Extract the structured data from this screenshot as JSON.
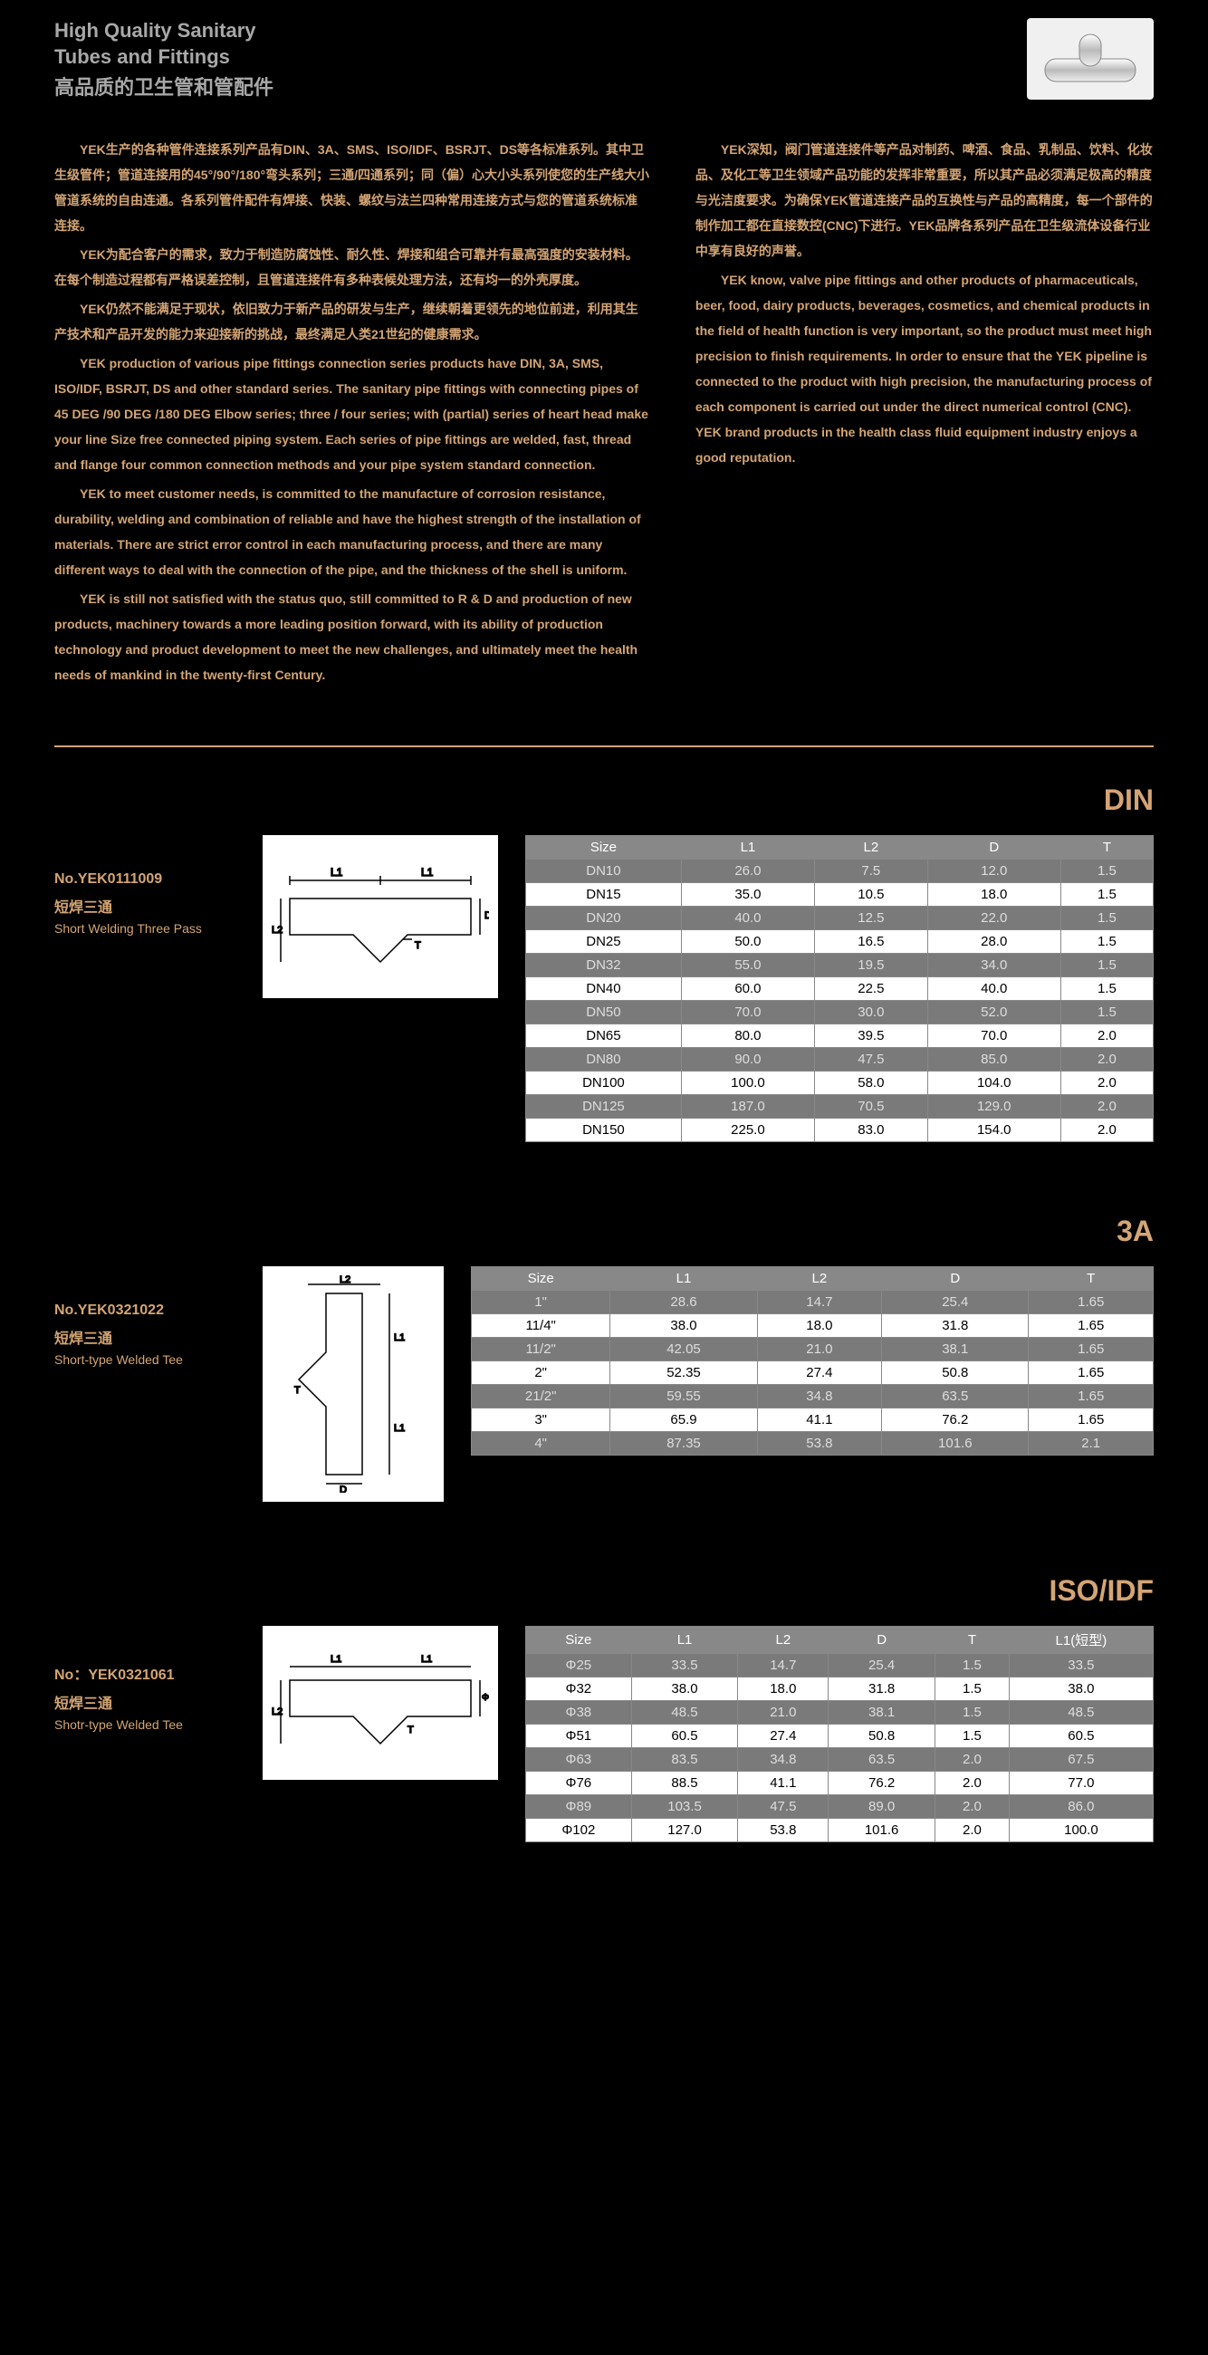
{
  "header": {
    "title_en_1": "High Quality Sanitary",
    "title_en_2": "Tubes and Fittings",
    "title_cn": "高品质的卫生管和管配件"
  },
  "intro_left": [
    "YEK生产的各种管件连接系列产品有DIN、3A、SMS、ISO/IDF、BSRJT、DS等各标准系列。其中卫生级管件；管道连接用的45°/90°/180°弯头系列；三通/四通系列；同（偏）心大小头系列使您的生产线大小管道系统的自由连通。各系列管件配件有焊接、快装、螺纹与法兰四种常用连接方式与您的管道系统标准连接。",
    "YEK为配合客户的需求，致力于制造防腐蚀性、耐久性、焊接和组合可靠并有最高强度的安装材料。在每个制造过程都有严格误差控制，且管道连接件有多种表候处理方法，还有均一的外壳厚度。",
    "YEK仍然不能满足于现状，依旧致力于新产品的研发与生产，继续朝着更领先的地位前进，利用其生产技术和产品开发的能力来迎接新的挑战，最终满足人类21世纪的健康需求。",
    "YEK production of various pipe fittings connection series products have DIN, 3A, SMS, ISO/IDF, BSRJT, DS and other standard series. The sanitary pipe fittings with connecting pipes of 45 DEG /90 DEG /180 DEG Elbow series; three / four series; with (partial) series of heart head make your line Size free connected piping system. Each series of pipe fittings are welded, fast, thread and flange four common connection methods and your pipe system standard connection.",
    "YEK to meet customer needs, is committed to the manufacture of corrosion resistance, durability, welding and combination of reliable and have the highest strength of the installation of materials. There are strict error control in each manufacturing process, and there are many different ways to deal with the connection of the pipe, and the thickness of the shell is uniform.",
    "YEK is still not satisfied with the status quo, still committed to R & D and production of new products, machinery towards a more leading position forward, with its ability of production technology and product development to meet the new challenges, and ultimately meet the health needs of mankind in the twenty-first Century."
  ],
  "intro_right": [
    "YEK深知，阀门管道连接件等产品对制药、啤酒、食品、乳制品、饮料、化妆品、及化工等卫生领域产品功能的发挥非常重要，所以其产品必须满足极高的精度与光洁度要求。为确保YEK管道连接产品的互换性与产品的高精度，每一个部件的制作加工都在直接数控(CNC)下进行。YEK品牌各系列产品在卫生级流体设备行业中享有良好的声誉。",
    "YEK know, valve pipe fittings and other products of pharmaceuticals, beer, food, dairy products, beverages, cosmetics, and chemical products in the field of health function is very important, so the product must meet high precision to finish requirements. In order to ensure that the YEK pipeline is connected to the product with high precision, the manufacturing process of each component is carried out under the direct numerical control (CNC). YEK brand products in the health class fluid equipment industry enjoys a good reputation."
  ],
  "tables": {
    "din": {
      "standard": "DIN",
      "product_no": "No.YEK0111009",
      "name_cn": "短焊三通",
      "name_en": "Short Welding Three Pass",
      "columns": [
        "Size",
        "L1",
        "L2",
        "D",
        "T"
      ],
      "rows": [
        [
          "DN10",
          "26.0",
          "7.5",
          "12.0",
          "1.5"
        ],
        [
          "DN15",
          "35.0",
          "10.5",
          "18.0",
          "1.5"
        ],
        [
          "DN20",
          "40.0",
          "12.5",
          "22.0",
          "1.5"
        ],
        [
          "DN25",
          "50.0",
          "16.5",
          "28.0",
          "1.5"
        ],
        [
          "DN32",
          "55.0",
          "19.5",
          "34.0",
          "1.5"
        ],
        [
          "DN40",
          "60.0",
          "22.5",
          "40.0",
          "1.5"
        ],
        [
          "DN50",
          "70.0",
          "30.0",
          "52.0",
          "1.5"
        ],
        [
          "DN65",
          "80.0",
          "39.5",
          "70.0",
          "2.0"
        ],
        [
          "DN80",
          "90.0",
          "47.5",
          "85.0",
          "2.0"
        ],
        [
          "DN100",
          "100.0",
          "58.0",
          "104.0",
          "2.0"
        ],
        [
          "DN125",
          "187.0",
          "70.5",
          "129.0",
          "2.0"
        ],
        [
          "DN150",
          "225.0",
          "83.0",
          "154.0",
          "2.0"
        ]
      ]
    },
    "a3": {
      "standard": "3A",
      "product_no": "No.YEK0321022",
      "name_cn": "短焊三通",
      "name_en": "Short-type Welded Tee",
      "columns": [
        "Size",
        "L1",
        "L2",
        "D",
        "T"
      ],
      "rows": [
        [
          "1\"",
          "28.6",
          "14.7",
          "25.4",
          "1.65"
        ],
        [
          "11/4\"",
          "38.0",
          "18.0",
          "31.8",
          "1.65"
        ],
        [
          "11/2\"",
          "42.05",
          "21.0",
          "38.1",
          "1.65"
        ],
        [
          "2\"",
          "52.35",
          "27.4",
          "50.8",
          "1.65"
        ],
        [
          "21/2\"",
          "59.55",
          "34.8",
          "63.5",
          "1.65"
        ],
        [
          "3\"",
          "65.9",
          "41.1",
          "76.2",
          "1.65"
        ],
        [
          "4\"",
          "87.35",
          "53.8",
          "101.6",
          "2.1"
        ]
      ]
    },
    "iso": {
      "standard": "ISO/IDF",
      "product_no": "No：YEK0321061",
      "name_cn": "短焊三通",
      "name_en": "Shotr-type Welded Tee",
      "columns": [
        "Size",
        "L1",
        "L2",
        "D",
        "T",
        "L1(短型)"
      ],
      "rows": [
        [
          "Φ25",
          "33.5",
          "14.7",
          "25.4",
          "1.5",
          "33.5"
        ],
        [
          "Φ32",
          "38.0",
          "18.0",
          "31.8",
          "1.5",
          "38.0"
        ],
        [
          "Φ38",
          "48.5",
          "21.0",
          "38.1",
          "1.5",
          "48.5"
        ],
        [
          "Φ51",
          "60.5",
          "27.4",
          "50.8",
          "1.5",
          "60.5"
        ],
        [
          "Φ63",
          "83.5",
          "34.8",
          "63.5",
          "2.0",
          "67.5"
        ],
        [
          "Φ76",
          "88.5",
          "41.1",
          "76.2",
          "2.0",
          "77.0"
        ],
        [
          "Φ89",
          "103.5",
          "47.5",
          "89.0",
          "2.0",
          "86.0"
        ],
        [
          "Φ102",
          "127.0",
          "53.8",
          "101.6",
          "2.0",
          "100.0"
        ]
      ]
    }
  }
}
